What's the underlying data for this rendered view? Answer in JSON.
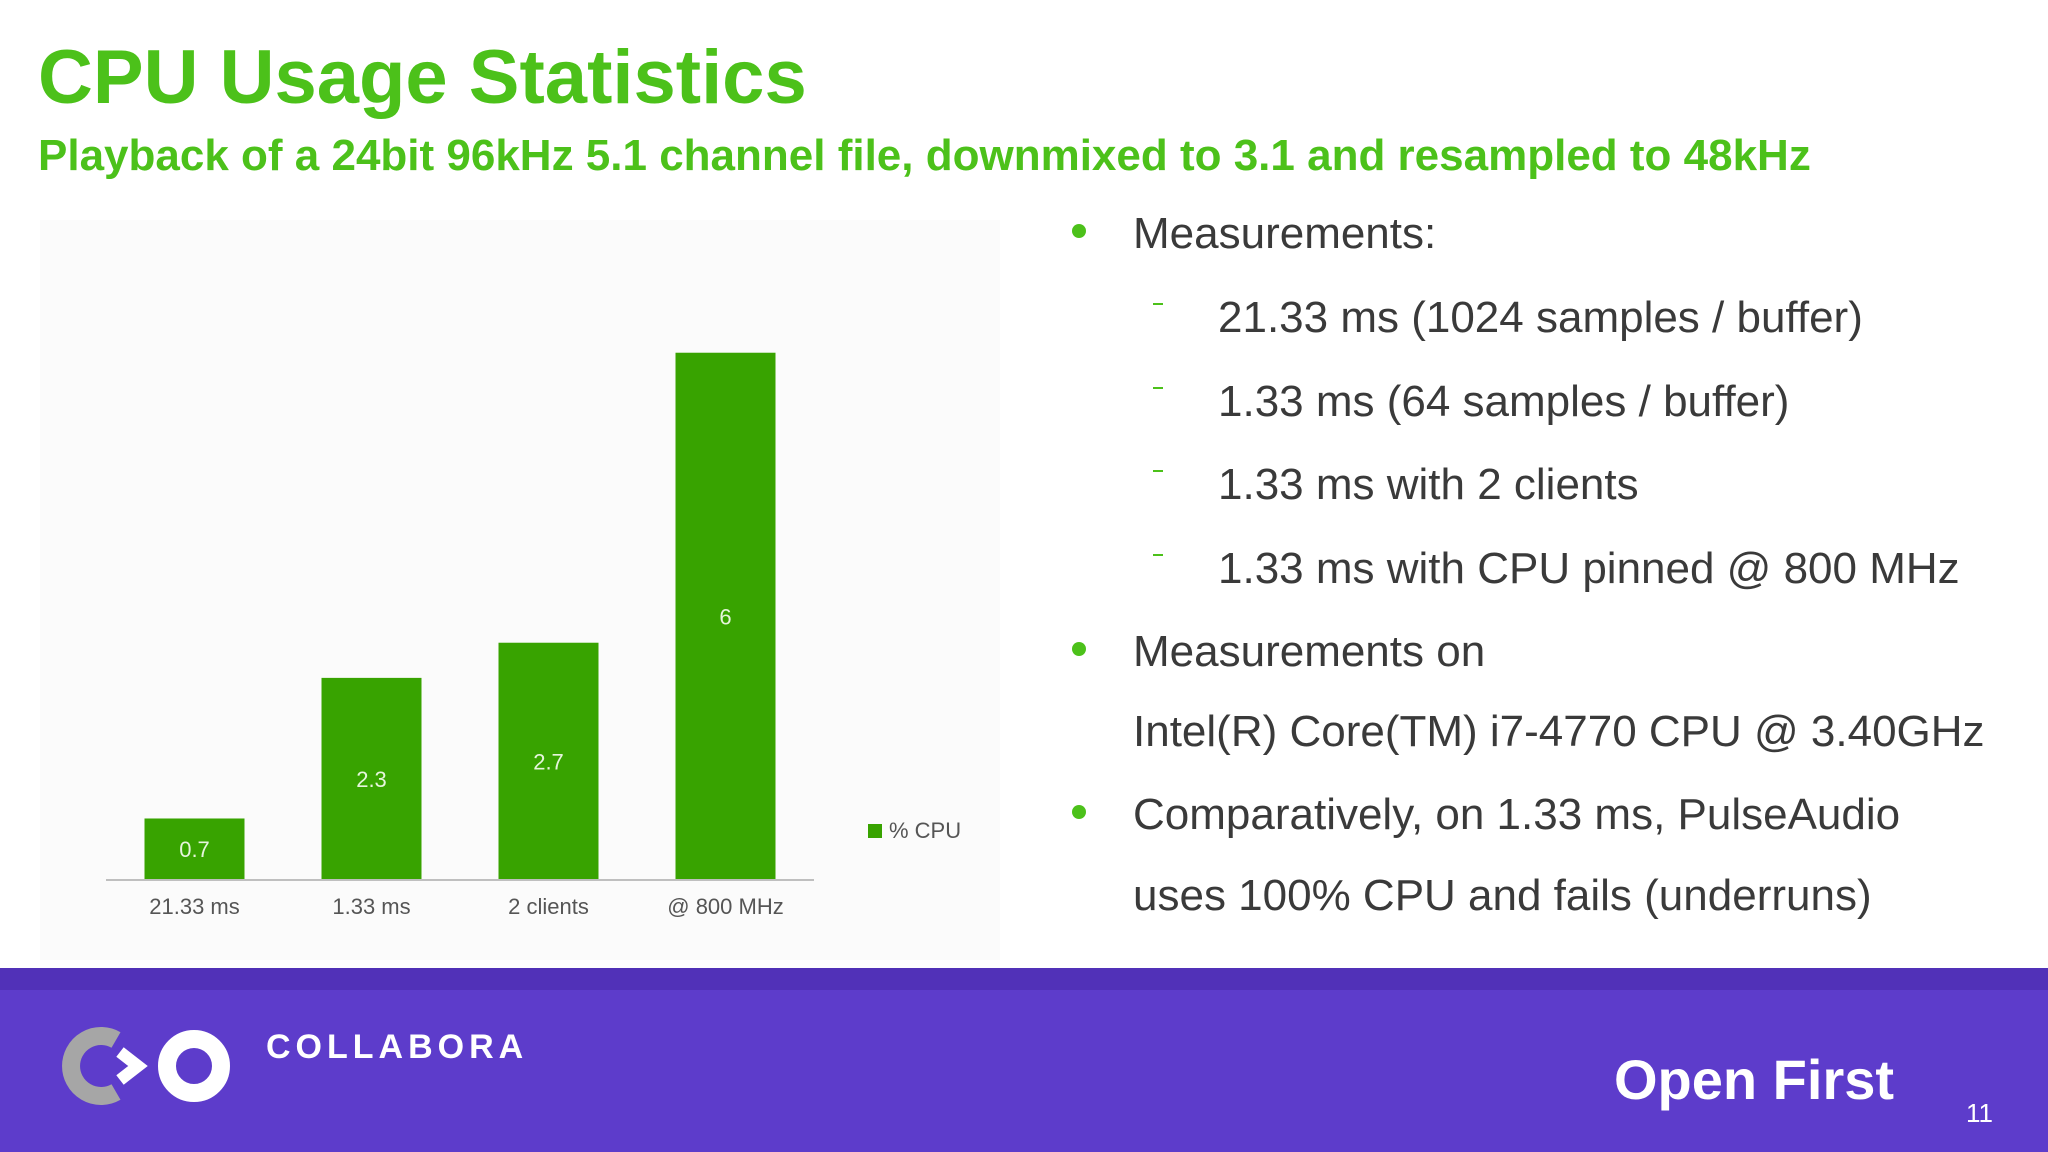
{
  "title": "CPU Usage Statistics",
  "subtitle": "Playback of a 24bit 96kHz 5.1 channel file, downmixed to 3.1 and resampled to 48kHz",
  "chart_data": {
    "type": "bar",
    "categories": [
      "21.33 ms",
      "1.33 ms",
      "2 clients",
      "@ 800 MHz"
    ],
    "series": [
      {
        "name": "% CPU",
        "values": [
          0.7,
          2.3,
          2.7,
          6
        ],
        "color": "#38a300"
      }
    ],
    "ylim": [
      0,
      6.6
    ],
    "grid": false,
    "legend": "right",
    "data_labels": true
  },
  "bullets": [
    {
      "level": 1,
      "text": "Measurements:"
    },
    {
      "level": 2,
      "text": "21.33 ms (1024 samples / buffer)"
    },
    {
      "level": 2,
      "text": "1.33 ms (64 samples / buffer)"
    },
    {
      "level": 2,
      "text": "1.33 ms with 2 clients"
    },
    {
      "level": 2,
      "text": "1.33 ms with CPU pinned @ 800 MHz"
    },
    {
      "level": 1,
      "text": "Measurements on"
    },
    {
      "level": 0,
      "text": "Intel(R) Core(TM) i7-4770 CPU @ 3.40GHz"
    },
    {
      "level": 1,
      "text": "Comparatively, on 1.33 ms, PulseAudio"
    },
    {
      "level": 0,
      "text": "uses 100% CPU and fails (underruns)"
    }
  ],
  "footer": {
    "brand": "COLLABORA",
    "tagline": "Open First",
    "page_number": "11",
    "background_color": "#5d3ccb"
  }
}
